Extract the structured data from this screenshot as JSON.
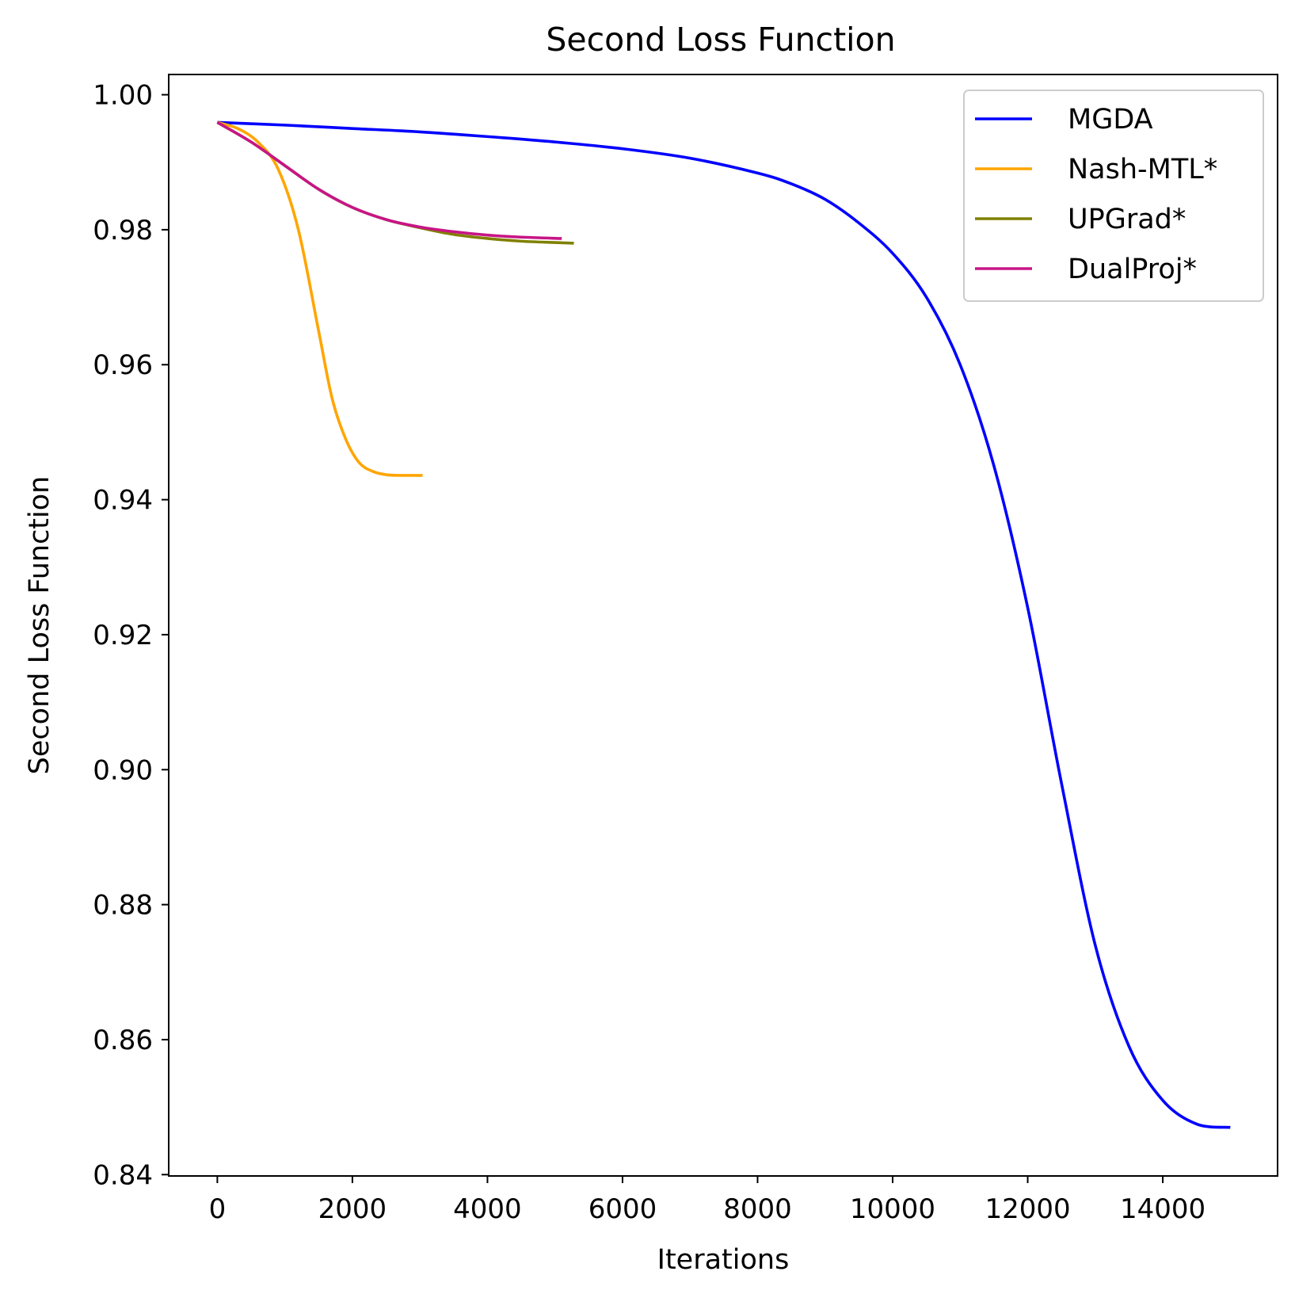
{
  "chart_data": {
    "type": "line",
    "title": "Second Loss Function",
    "xlabel": "Iterations",
    "ylabel": "Second Loss Function",
    "xlim": [
      -720,
      15700
    ],
    "ylim": [
      0.8398,
      1.003
    ],
    "xticks": [
      {
        "value": 0,
        "label": "0"
      },
      {
        "value": 2000,
        "label": "2000"
      },
      {
        "value": 4000,
        "label": "4000"
      },
      {
        "value": 6000,
        "label": "6000"
      },
      {
        "value": 8000,
        "label": "8000"
      },
      {
        "value": 10000,
        "label": "10000"
      },
      {
        "value": 12000,
        "label": "12000"
      },
      {
        "value": 14000,
        "label": "14000"
      }
    ],
    "yticks": [
      {
        "value": 0.84,
        "label": "0.84"
      },
      {
        "value": 0.86,
        "label": "0.86"
      },
      {
        "value": 0.88,
        "label": "0.88"
      },
      {
        "value": 0.9,
        "label": "0.90"
      },
      {
        "value": 0.92,
        "label": "0.92"
      },
      {
        "value": 0.94,
        "label": "0.94"
      },
      {
        "value": 0.96,
        "label": "0.96"
      },
      {
        "value": 0.98,
        "label": "0.98"
      },
      {
        "value": 1.0,
        "label": "1.00"
      }
    ],
    "grid": false,
    "legend_position": "top-right",
    "series": [
      {
        "name": "MGDA",
        "color": "#0000ff",
        "x": [
          0,
          1000,
          2000,
          3000,
          4000,
          5000,
          6000,
          7000,
          8000,
          8500,
          9000,
          9500,
          10000,
          10500,
          11000,
          11500,
          12000,
          12500,
          13000,
          13500,
          14000,
          14500,
          15000
        ],
        "y": [
          0.9959,
          0.9955,
          0.995,
          0.9945,
          0.9938,
          0.993,
          0.992,
          0.9906,
          0.9884,
          0.9868,
          0.9845,
          0.981,
          0.9765,
          0.97,
          0.96,
          0.945,
          0.924,
          0.898,
          0.874,
          0.859,
          0.851,
          0.8475,
          0.847
        ]
      },
      {
        "name": "Nash-MTL*",
        "color": "#ffa500",
        "x": [
          0,
          300,
          600,
          900,
          1200,
          1500,
          1700,
          1900,
          2100,
          2300,
          2500,
          2700,
          3040
        ],
        "y": [
          0.9959,
          0.995,
          0.993,
          0.989,
          0.98,
          0.965,
          0.955,
          0.949,
          0.9455,
          0.9442,
          0.9437,
          0.9436,
          0.9436
        ]
      },
      {
        "name": "UPGrad*",
        "color": "#808000",
        "x": [
          0,
          500,
          1000,
          1500,
          2000,
          2500,
          3000,
          3500,
          4000,
          4500,
          5000,
          5280
        ],
        "y": [
          0.9959,
          0.993,
          0.9895,
          0.986,
          0.9833,
          0.9815,
          0.9803,
          0.9793,
          0.9787,
          0.9783,
          0.9781,
          0.978
        ]
      },
      {
        "name": "DualProj*",
        "color": "#c71585",
        "x": [
          0,
          500,
          1000,
          1500,
          2000,
          2500,
          3000,
          3500,
          4000,
          4500,
          5100
        ],
        "y": [
          0.9959,
          0.993,
          0.9895,
          0.986,
          0.9833,
          0.9815,
          0.9804,
          0.9797,
          0.9792,
          0.9789,
          0.9787
        ]
      }
    ]
  }
}
